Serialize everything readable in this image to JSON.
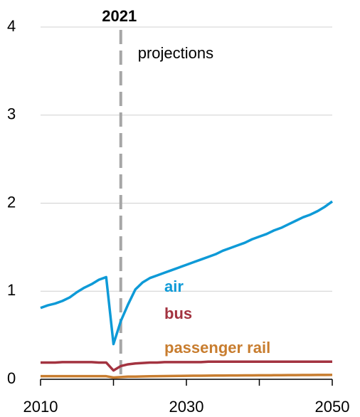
{
  "chart_data": {
    "type": "line",
    "x": [
      2010,
      2011,
      2012,
      2013,
      2014,
      2015,
      2016,
      2017,
      2018,
      2019,
      2020,
      2021,
      2022,
      2023,
      2024,
      2025,
      2026,
      2027,
      2028,
      2029,
      2030,
      2031,
      2032,
      2033,
      2034,
      2035,
      2036,
      2037,
      2038,
      2039,
      2040,
      2041,
      2042,
      2043,
      2044,
      2045,
      2046,
      2047,
      2048,
      2049,
      2050
    ],
    "series": [
      {
        "name": "air",
        "color": "#0e9ad7",
        "values": [
          0.81,
          0.84,
          0.86,
          0.89,
          0.93,
          0.99,
          1.04,
          1.08,
          1.13,
          1.16,
          0.4,
          0.66,
          0.85,
          1.02,
          1.1,
          1.15,
          1.18,
          1.21,
          1.24,
          1.27,
          1.3,
          1.33,
          1.36,
          1.39,
          1.42,
          1.46,
          1.49,
          1.52,
          1.55,
          1.59,
          1.62,
          1.65,
          1.69,
          1.72,
          1.76,
          1.8,
          1.84,
          1.87,
          1.91,
          1.96,
          2.02
        ]
      },
      {
        "name": "bus",
        "color": "#a33340",
        "values": [
          0.19,
          0.19,
          0.19,
          0.195,
          0.195,
          0.195,
          0.195,
          0.195,
          0.19,
          0.19,
          0.1,
          0.15,
          0.17,
          0.18,
          0.185,
          0.19,
          0.19,
          0.195,
          0.195,
          0.195,
          0.195,
          0.195,
          0.195,
          0.2,
          0.2,
          0.2,
          0.2,
          0.2,
          0.2,
          0.2,
          0.2,
          0.2,
          0.2,
          0.2,
          0.2,
          0.2,
          0.2,
          0.2,
          0.2,
          0.2,
          0.2
        ]
      },
      {
        "name": "passenger rail",
        "color": "#c87d2f",
        "values": [
          0.035,
          0.035,
          0.035,
          0.035,
          0.035,
          0.035,
          0.035,
          0.035,
          0.035,
          0.035,
          0.02,
          0.025,
          0.03,
          0.03,
          0.032,
          0.034,
          0.035,
          0.036,
          0.037,
          0.038,
          0.039,
          0.04,
          0.04,
          0.041,
          0.042,
          0.042,
          0.043,
          0.043,
          0.044,
          0.044,
          0.045,
          0.045,
          0.046,
          0.046,
          0.047,
          0.047,
          0.048,
          0.048,
          0.049,
          0.049,
          0.05
        ]
      }
    ],
    "xlim": [
      2010,
      2050
    ],
    "xticks": [
      2010,
      2030,
      2050
    ],
    "xminorticks": [
      2020,
      2040
    ],
    "ylim": [
      0,
      4
    ],
    "yticks": [
      0,
      1,
      2,
      3,
      4
    ],
    "grid": true,
    "marker_line": {
      "x": 2021,
      "label": "2021",
      "annotation": "projections"
    }
  }
}
